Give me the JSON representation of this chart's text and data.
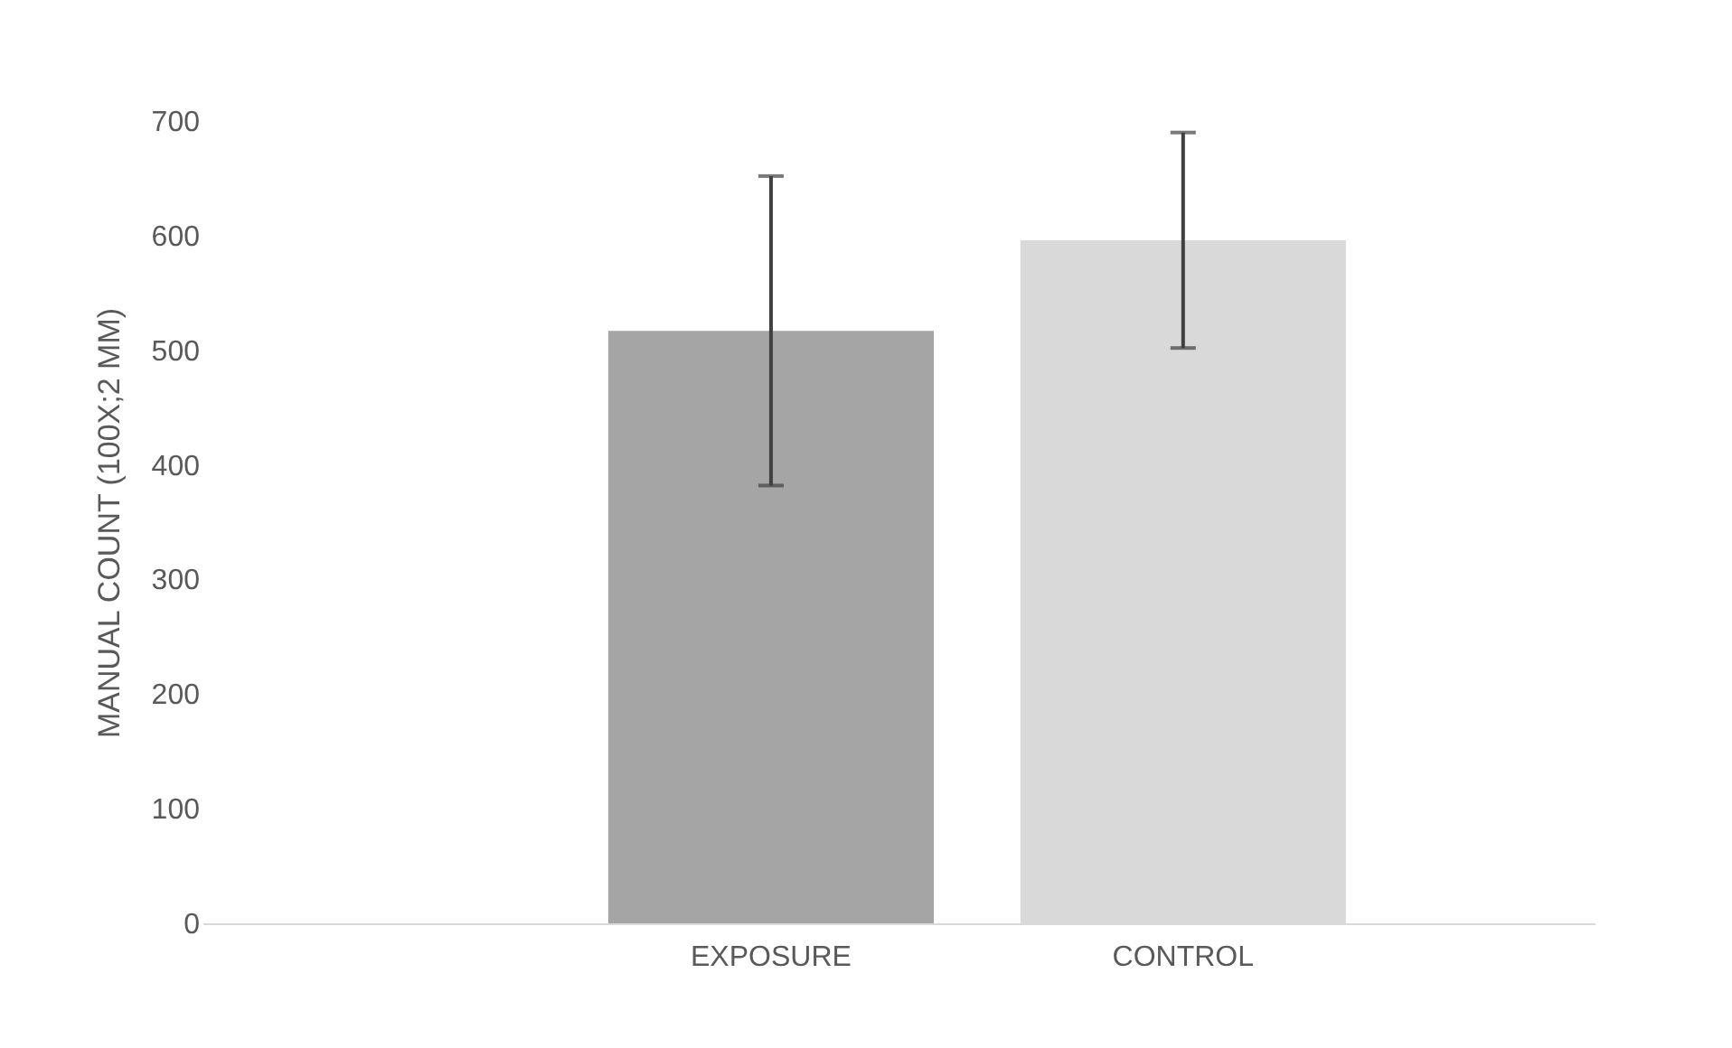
{
  "chart_data": {
    "type": "bar",
    "ylabel": "MANUAL COUNT (100X;2 MM)",
    "categories": [
      "EXPOSURE",
      "CONTROL"
    ],
    "values": [
      517,
      596
    ],
    "colors": [
      "#a5a5a5",
      "#d9d9d9"
    ],
    "errors": [
      135,
      94
    ],
    "ylim": [
      0,
      700
    ],
    "yticks": [
      0,
      100,
      200,
      300,
      400,
      500,
      600,
      700
    ],
    "grid": false,
    "legend": false
  }
}
